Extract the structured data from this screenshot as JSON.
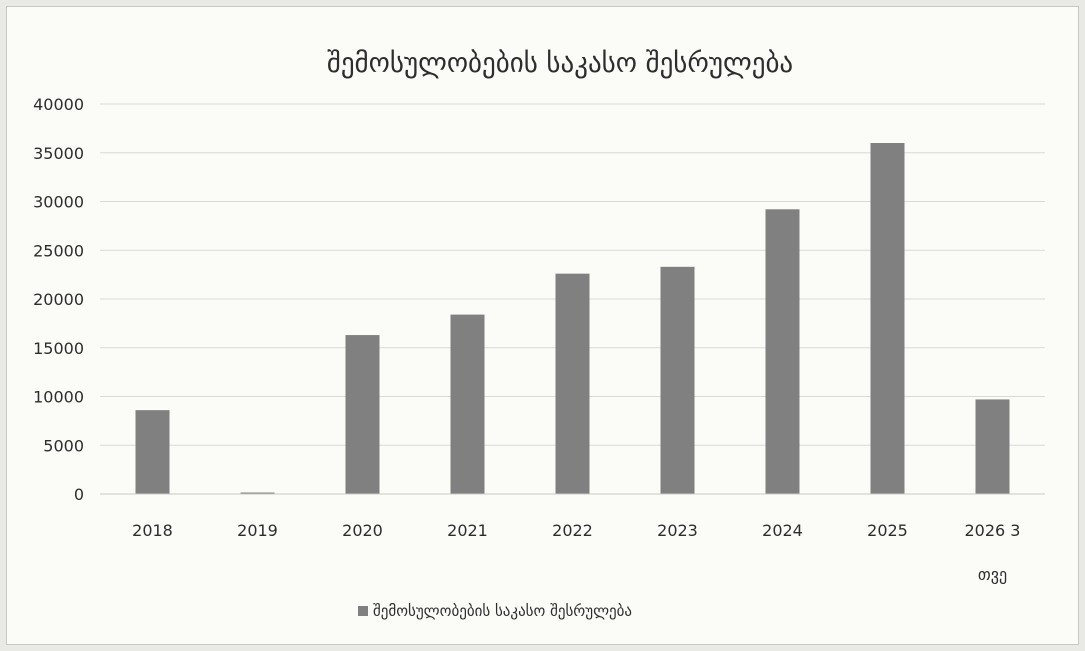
{
  "chart_data": {
    "type": "bar",
    "title": "შემოსულობების საკასო შესრულება",
    "xlabel": "",
    "ylabel": "",
    "categories": [
      "2018",
      "2019",
      "2020",
      "2021",
      "2022",
      "2023",
      "2024",
      "2025",
      "2026 3 თვე"
    ],
    "category_lines": [
      [
        "2018"
      ],
      [
        "2019"
      ],
      [
        "2020"
      ],
      [
        "2021"
      ],
      [
        "2022"
      ],
      [
        "2023"
      ],
      [
        "2024"
      ],
      [
        "2025"
      ],
      [
        "2026 3",
        "თვე"
      ]
    ],
    "series": [
      {
        "name": "შემოსულობების საკასო შესრულება",
        "values": [
          8600,
          150,
          16300,
          18400,
          22600,
          23300,
          29200,
          36000,
          9700
        ],
        "color": "#808080"
      }
    ],
    "ylim": [
      0,
      40000
    ],
    "yticks": [
      0,
      5000,
      10000,
      15000,
      20000,
      25000,
      30000,
      35000,
      40000
    ],
    "grid": true,
    "legend": "bottom"
  }
}
